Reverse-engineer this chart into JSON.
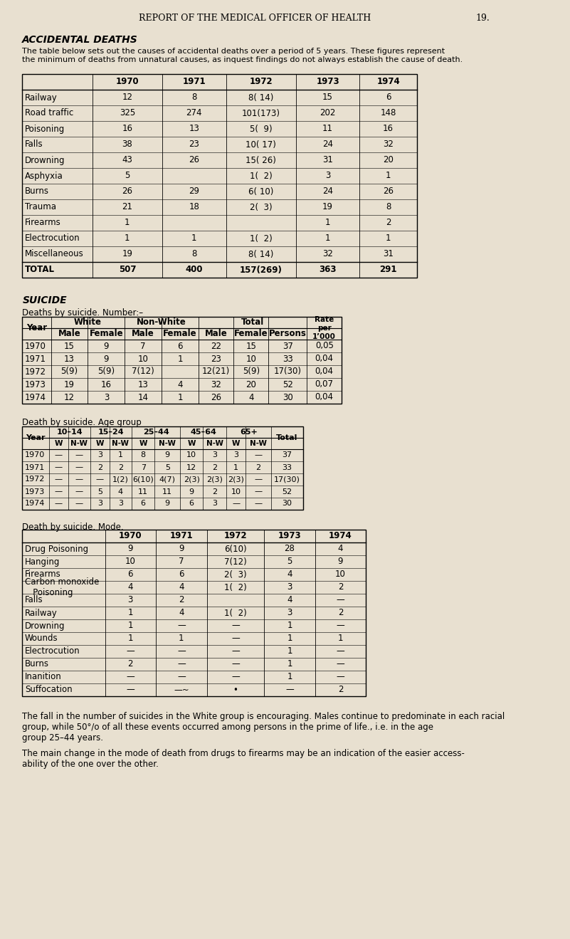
{
  "bg_color": "#e8e0d0",
  "header_title": "REPORT OF THE MEDICAL OFFICER OF HEALTH",
  "header_page": "19.",
  "section1_title": "ACCIDENTAL DEATHS",
  "section1_desc": "The table below sets out the causes of accidental deaths over a period of 5 years. These figures represent\nthe minimum of deaths from unnatural causes, as inquest findings do not always establish the cause of death.",
  "table1_col_headers": [
    "",
    "1970",
    "1971",
    "1972",
    "1973",
    "1974"
  ],
  "table1_rows": [
    [
      "Railway",
      "12",
      "8",
      "8( 14)",
      "15",
      "6"
    ],
    [
      "Road traffic",
      "325",
      "274",
      "101(173)",
      "202",
      "148"
    ],
    [
      "Poisoning",
      "16",
      "13",
      "5(  9)",
      "11",
      "16"
    ],
    [
      "Falls",
      "38",
      "23",
      "10( 17)",
      "24",
      "32"
    ],
    [
      "Drowning",
      "43",
      "26",
      "15( 26)",
      "31",
      "20"
    ],
    [
      "Asphyxia",
      "5",
      "",
      "1(  2)",
      "3",
      "1"
    ],
    [
      "Burns",
      "26",
      "29",
      "6( 10)",
      "24",
      "26"
    ],
    [
      "Trauma",
      "21",
      "18",
      "2(  3)",
      "19",
      "8"
    ],
    [
      "Firearms",
      "1",
      "",
      "",
      "1",
      "2"
    ],
    [
      "Electrocution",
      "1",
      "1",
      "1(  2)",
      "1",
      "1"
    ],
    [
      "Miscellaneous",
      "19",
      "8",
      "8( 14)",
      "32",
      "31"
    ]
  ],
  "table1_total": [
    "TOTAL",
    "507",
    "400",
    "157(269)",
    "363",
    "291"
  ],
  "section2_title": "SUICIDE",
  "section2_sub1": "Deaths by suicide. Number:–",
  "table2_col_headers": [
    "Year",
    "White\nMale",
    "White\nFemale",
    "Non-White\nMale",
    "Non-White\nFemale",
    "Total\nMale",
    "Total\nFemale",
    "Total\nPersons",
    "Rate per\n1’000"
  ],
  "table2_rows": [
    [
      "1970",
      "15",
      "9",
      "7",
      "6",
      "22",
      "15",
      "37",
      "0,05"
    ],
    [
      "1971",
      "13",
      "9",
      "10",
      "1",
      "23",
      "10",
      "33",
      "0,04"
    ],
    [
      "1972",
      "5(9)",
      "5(9)",
      "7(12)",
      "",
      "12(21)",
      "5(9)",
      "17(30)",
      "0,04"
    ],
    [
      "1973",
      "19",
      "16",
      "13",
      "4",
      "32",
      "20",
      "52",
      "0,07"
    ],
    [
      "1974",
      "12",
      "3",
      "14",
      "1",
      "26",
      "4",
      "30",
      "0,04"
    ]
  ],
  "section2_sub2": "Death by suicide. Age group",
  "table3_col_headers": [
    "Year",
    "10-14\nW",
    "10-14\nN-W",
    "15-24\nW",
    "15-24\nN-W",
    "25-44\nW",
    "25-44\nN-W",
    "45-64\nW",
    "45-64\nN-W",
    "65+\nW",
    "65+\nN-W",
    "Total"
  ],
  "table3_rows": [
    [
      "1970",
      "—",
      "—",
      "3",
      "1",
      "8",
      "9",
      "10",
      "3",
      "3",
      "—",
      "37"
    ],
    [
      "1971",
      "—",
      "—",
      "2",
      "2",
      "7",
      "5",
      "12",
      "2",
      "1",
      "2",
      "33"
    ],
    [
      "1972",
      "—",
      "—",
      "—",
      "1(2)",
      "6(10)",
      "4(7)",
      "2(3)",
      "2(3)",
      "2(3)",
      "—",
      "17(30)"
    ],
    [
      "1973",
      "—",
      "—",
      "5",
      "4",
      "11",
      "11",
      "9",
      "2",
      "10",
      "—",
      "52"
    ],
    [
      "1974",
      "—",
      "—",
      "3",
      "3",
      "6",
      "9",
      "6",
      "3",
      "—",
      "—",
      "30"
    ]
  ],
  "section2_sub3": "Death by suicide. Mode.",
  "table4_col_headers": [
    "",
    "1970",
    "1971",
    "1972",
    "1973",
    "1974"
  ],
  "table4_rows": [
    [
      "Drug Poisoning",
      "9",
      "9",
      "6(10)",
      "28",
      "4"
    ],
    [
      "Hanging",
      "10",
      "7",
      "7(12)",
      "5",
      "9"
    ],
    [
      "Firearms",
      "6",
      "6",
      "2(  3)",
      "4",
      "10"
    ],
    [
      "Carbon monoxide\n   Poisoning",
      "4",
      "4",
      "1(  2)",
      "3",
      "2"
    ],
    [
      "Falls",
      "3",
      "2",
      "",
      "4",
      "—"
    ],
    [
      "Railway",
      "1",
      "4",
      "1(  2)",
      "3",
      "2"
    ],
    [
      "Drowning",
      "1",
      "—",
      "—",
      "1",
      "—"
    ],
    [
      "Wounds",
      "1",
      "1",
      "—",
      "1",
      "1"
    ],
    [
      "Electrocution",
      "—",
      "—",
      "—",
      "1",
      "—"
    ],
    [
      "Burns",
      "2",
      "—",
      "—",
      "1",
      "—"
    ],
    [
      "Inanition",
      "—",
      "—",
      "—",
      "1",
      "—"
    ],
    [
      "Suffocation",
      "—",
      "—~",
      "•",
      "—",
      "2"
    ]
  ],
  "footer_text1": "The fall in the number of suicides in the White group is encouraging. Males continue to predominate in each racial\ngroup, while 50°/o of all these events occurred among persons in the prime of life., i.e. in the age\ngroup 25–44 years.",
  "footer_text2": "The main change in the mode of death from drugs to firearms may be an indication of the easier access-\nability of the one over the other."
}
